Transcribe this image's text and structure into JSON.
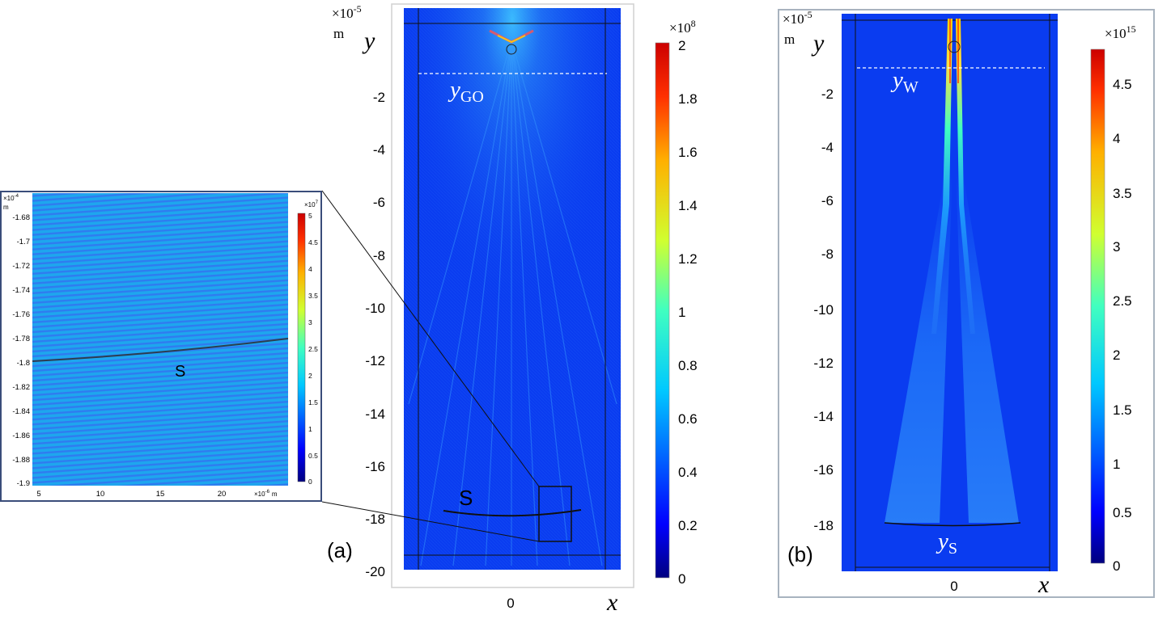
{
  "inset": {
    "exponent": "×10",
    "exponent_power": "-4",
    "unit": "m",
    "y_ticks": [
      "-1.68",
      "-1.7",
      "-1.72",
      "-1.74",
      "-1.76",
      "-1.78",
      "-1.8",
      "-1.82",
      "-1.84",
      "-1.86",
      "-1.88",
      "-1.9"
    ],
    "x_ticks": [
      "5",
      "10",
      "15",
      "20"
    ],
    "x_exponent": "×10",
    "x_exponent_power": "-6",
    "x_unit": "m",
    "surface_label": "S",
    "colorbar_exponent": "×10",
    "colorbar_exponent_power": "7",
    "colorbar_ticks": [
      "5",
      "4.5",
      "4",
      "3.5",
      "3",
      "2.5",
      "2",
      "1.5",
      "1",
      "0.5",
      "0"
    ]
  },
  "panel_a": {
    "label": "(a)",
    "exponent": "×10",
    "exponent_power": "-5",
    "unit": "m",
    "y_axis": "y",
    "x_axis": "x",
    "y_ticks": [
      "-2",
      "-4",
      "-6",
      "-8",
      "-10",
      "-12",
      "-14",
      "-16",
      "-18",
      "-20"
    ],
    "x_ticks": [
      "0"
    ],
    "line_label_main": "y",
    "line_label_sub": "GO",
    "surface_label": "S",
    "colorbar_exponent": "×10",
    "colorbar_exponent_power": "8",
    "colorbar_ticks": [
      "2",
      "1.8",
      "1.6",
      "1.4",
      "1.2",
      "1",
      "0.8",
      "0.6",
      "0.4",
      "0.2",
      "0"
    ]
  },
  "panel_b": {
    "label": "(b)",
    "exponent": "×10",
    "exponent_power": "-5",
    "unit": "m",
    "y_axis": "y",
    "x_axis": "x",
    "y_ticks": [
      "-2",
      "-4",
      "-6",
      "-8",
      "-10",
      "-12",
      "-14",
      "-16",
      "-18"
    ],
    "x_ticks": [
      "0"
    ],
    "line_label_main": "y",
    "line_label_sub": "W",
    "surface_label_main": "y",
    "surface_label_sub": "S",
    "colorbar_exponent": "×10",
    "colorbar_exponent_power": "15",
    "colorbar_ticks": [
      "4.5",
      "4",
      "3.5",
      "3",
      "2.5",
      "2",
      "1.5",
      "1",
      "0.5",
      "0"
    ]
  },
  "colors": {
    "field_background": "#0a3cf0",
    "colormap": [
      "#00007f",
      "#0000ff",
      "#0080ff",
      "#00ffff",
      "#80ff80",
      "#ffff00",
      "#ff8000",
      "#ff0000",
      "#cc0000"
    ]
  }
}
